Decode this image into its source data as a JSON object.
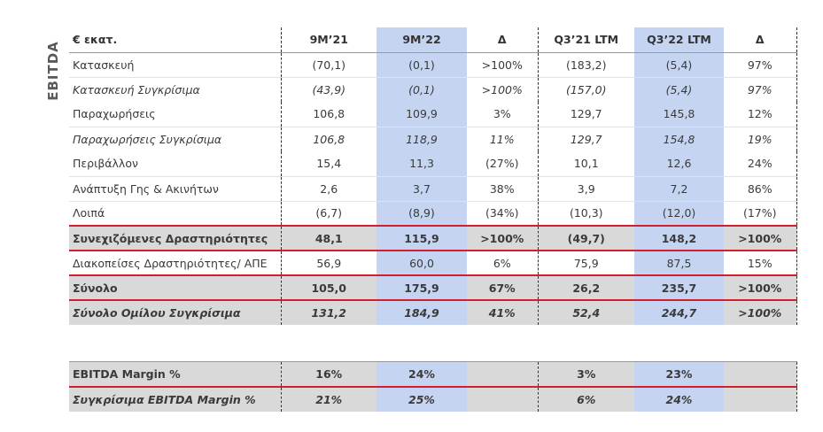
{
  "side_label": "EBITDA",
  "header": [
    "€ εκατ.",
    "9M’21",
    "9M’22",
    "Δ",
    "Q3’21 LTM",
    "Q3’22 LTM",
    "Δ"
  ],
  "rows": [
    {
      "type": "plain",
      "cells": [
        "Κατασκευή",
        "(70,1)",
        "(0,1)",
        ">100%",
        "(183,2)",
        "(5,4)",
        "97%"
      ]
    },
    {
      "type": "italic",
      "cells": [
        "Κατασκευή Συγκρίσιμα",
        "(43,9)",
        "(0,1)",
        ">100%",
        "(157,0)",
        "(5,4)",
        "97%"
      ]
    },
    {
      "type": "plain",
      "cells": [
        "Παραχωρήσεις",
        "106,8",
        "109,9",
        "3%",
        "129,7",
        "145,8",
        "12%"
      ]
    },
    {
      "type": "italic",
      "cells": [
        "Παραχωρήσεις Συγκρίσιμα",
        "106,8",
        "118,9",
        "11%",
        "129,7",
        "154,8",
        "19%"
      ]
    },
    {
      "type": "plain",
      "cells": [
        "Περιβάλλον",
        "15,4",
        "11,3",
        "(27%)",
        "10,1",
        "12,6",
        "24%"
      ]
    },
    {
      "type": "plain",
      "cells": [
        "Ανάπτυξη Γης & Ακινήτων",
        "2,6",
        "3,7",
        "38%",
        "3,9",
        "7,2",
        "86%"
      ]
    },
    {
      "type": "plain",
      "cells": [
        "Λοιπά",
        "(6,7)",
        "(8,9)",
        "(34%)",
        "(10,3)",
        "(12,0)",
        "(17%)"
      ]
    },
    {
      "type": "sub",
      "cells": [
        "Συνεχιζόμενες Δραστηριότητες",
        "48,1",
        "115,9",
        ">100%",
        "(49,7)",
        "148,2",
        ">100%"
      ]
    },
    {
      "type": "plain",
      "cells": [
        "Διακοπείσες Δραστηριότητες/ ΑΠΕ",
        "56,9",
        "60,0",
        "6%",
        "75,9",
        "87,5",
        "15%"
      ]
    },
    {
      "type": "total",
      "cells": [
        "Σύνολο",
        "105,0",
        "175,9",
        "67%",
        "26,2",
        "235,7",
        ">100%"
      ]
    },
    {
      "type": "group",
      "cells": [
        "Σύνολο Ομίλου Συγκρίσιμα",
        "131,2",
        "184,9",
        "41%",
        "52,4",
        "244,7",
        ">100%"
      ]
    }
  ],
  "margin_rows": [
    {
      "type": "m1",
      "cells": [
        "EBITDA Margin %",
        "16%",
        "24%",
        "",
        "3%",
        "23%",
        ""
      ]
    },
    {
      "type": "m2",
      "cells": [
        "Συγκρίσιμα EBITDA Margin %",
        "21%",
        "25%",
        "",
        "6%",
        "24%",
        ""
      ]
    }
  ]
}
